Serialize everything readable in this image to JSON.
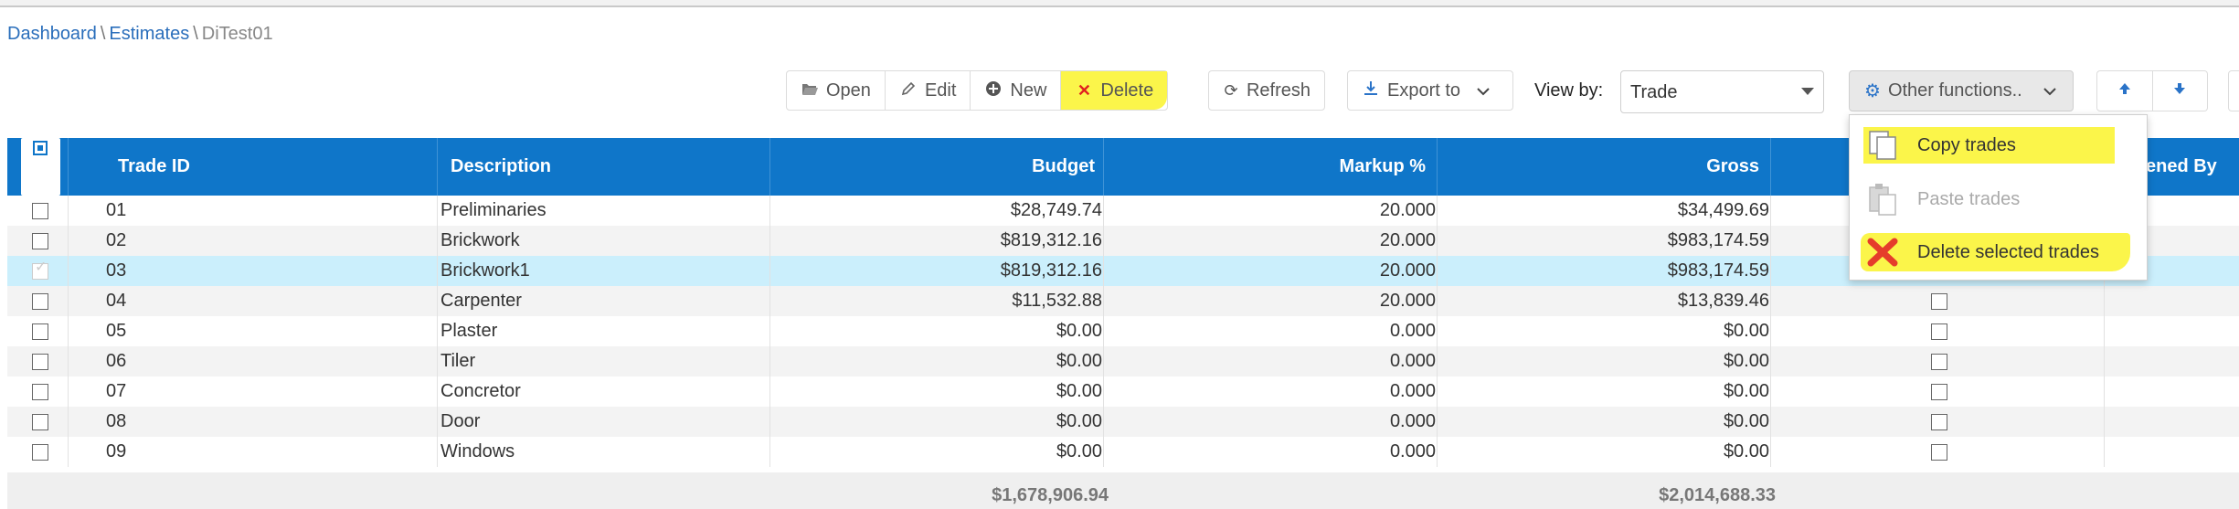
{
  "breadcrumb": {
    "dashboard": "Dashboard",
    "estimates": "Estimates",
    "current": "DiTest01",
    "separator": "\\"
  },
  "toolbar": {
    "open": "Open",
    "edit": "Edit",
    "new": "New",
    "delete": "Delete",
    "refresh": "Refresh",
    "export": "Export to",
    "view_by_label": "View by:",
    "view_by_value": "Trade",
    "other_functions": "Other functions.."
  },
  "columns": {
    "trade_id": "Trade ID",
    "description": "Description",
    "budget": "Budget",
    "markup": "Markup %",
    "gross": "Gross",
    "opened_by": "ened By Us"
  },
  "rows": [
    {
      "id": "01",
      "desc": "Preliminaries",
      "budget": "$28,749.74",
      "markup": "20.000",
      "gross": "$34,499.69"
    },
    {
      "id": "02",
      "desc": "Brickwork",
      "budget": "$819,312.16",
      "markup": "20.000",
      "gross": "$983,174.59"
    },
    {
      "id": "03",
      "desc": "Brickwork1",
      "budget": "$819,312.16",
      "markup": "20.000",
      "gross": "$983,174.59"
    },
    {
      "id": "04",
      "desc": "Carpenter",
      "budget": "$11,532.88",
      "markup": "20.000",
      "gross": "$13,839.46"
    },
    {
      "id": "05",
      "desc": "Plaster",
      "budget": "$0.00",
      "markup": "0.000",
      "gross": "$0.00"
    },
    {
      "id": "06",
      "desc": "Tiler",
      "budget": "$0.00",
      "markup": "0.000",
      "gross": "$0.00"
    },
    {
      "id": "07",
      "desc": "Concretor",
      "budget": "$0.00",
      "markup": "0.000",
      "gross": "$0.00"
    },
    {
      "id": "08",
      "desc": "Door",
      "budget": "$0.00",
      "markup": "0.000",
      "gross": "$0.00"
    },
    {
      "id": "09",
      "desc": "Windows",
      "budget": "$0.00",
      "markup": "0.000",
      "gross": "$0.00"
    }
  ],
  "totals": {
    "budget": "$1,678,906.94",
    "gross": "$2,014,688.33"
  },
  "dropdown": {
    "copy": "Copy trades",
    "paste": "Paste trades",
    "delete_selected": "Delete selected trades"
  },
  "colors": {
    "header_blue": "#0f76c9",
    "highlight_yellow": "#fbf54a",
    "selected_row": "#cbeffc",
    "link": "#2a6ebb"
  }
}
